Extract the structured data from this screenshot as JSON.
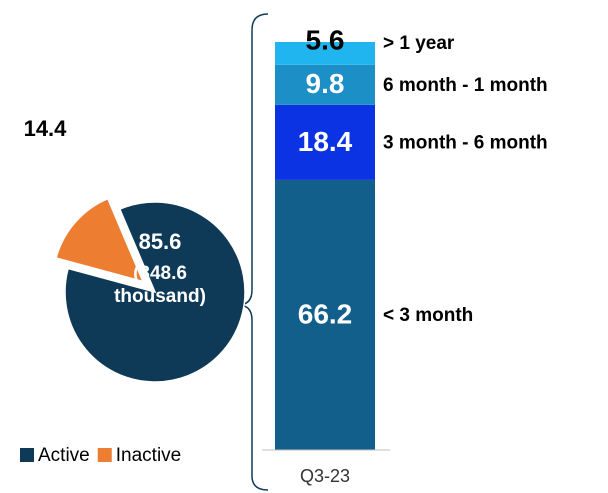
{
  "chart_data": [
    {
      "type": "pie",
      "categories": [
        "Active",
        "Inactive"
      ],
      "values": [
        85.6,
        14.4
      ],
      "colors": [
        "#0e3a57",
        "#ed7d31"
      ],
      "annotation": "(348.6 thousand)",
      "legend": "bottom"
    },
    {
      "type": "stacked_bar",
      "categories": [
        "Q3-23"
      ],
      "series": [
        {
          "name": "< 3 month",
          "color": "#135f8b",
          "values": [
            66.2
          ]
        },
        {
          "name": "3 month - 6 month",
          "color": "#0c33e3",
          "values": [
            18.4
          ]
        },
        {
          "name": "6 month - 1 month",
          "color": "#1b8fc6",
          "values": [
            9.8
          ]
        },
        {
          "name": "> 1 year",
          "color": "#21b5ef",
          "values": [
            5.6
          ]
        }
      ],
      "ylim": [
        0,
        100
      ]
    }
  ]
}
